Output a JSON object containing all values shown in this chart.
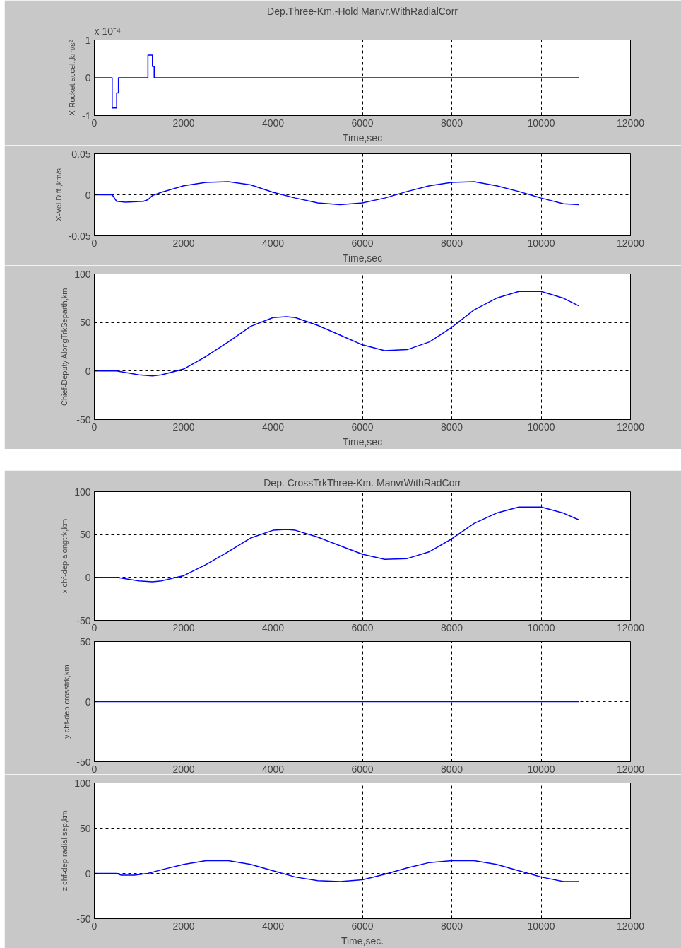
{
  "chart_data": [
    {
      "type": "line",
      "title": "Dep.Three-Km.-Hold Manvr.WithRadialCorr",
      "xlabel": "Time,sec",
      "ylabel": "X-Rocket accel.,km/s²",
      "annotations": [
        "x 10⁻⁴"
      ],
      "x": [
        0,
        400,
        400,
        500,
        500,
        540,
        540,
        1200,
        1200,
        1300,
        1300,
        1340,
        1340,
        10850
      ],
      "series": [
        {
          "color": "#0000ff",
          "values": [
            0,
            0,
            -0.8,
            -0.8,
            -0.4,
            -0.4,
            0,
            0,
            0.6,
            0.6,
            0.3,
            0.3,
            0,
            0
          ]
        }
      ],
      "xlim": [
        0,
        12000
      ],
      "ylim": [
        -1,
        1
      ],
      "xticks": [
        0,
        2000,
        4000,
        6000,
        8000,
        10000,
        12000
      ],
      "yticks": [
        -1,
        0,
        1
      ],
      "grid": true
    },
    {
      "type": "line",
      "xlabel": "Time,sec",
      "ylabel": "X-Vel.Diff.,km/s",
      "x": [
        0,
        400,
        500,
        700,
        1100,
        1200,
        1300,
        1500,
        2000,
        2500,
        3000,
        3500,
        4000,
        4500,
        5000,
        5500,
        6000,
        6500,
        7000,
        7500,
        8000,
        8500,
        9000,
        9500,
        10000,
        10500,
        10850
      ],
      "series": [
        {
          "color": "#0000ff",
          "values": [
            0,
            0,
            -0.008,
            -0.009,
            -0.008,
            -0.006,
            -0.001,
            0.003,
            0.011,
            0.015,
            0.016,
            0.012,
            0.003,
            -0.004,
            -0.01,
            -0.012,
            -0.01,
            -0.004,
            0.004,
            0.011,
            0.015,
            0.016,
            0.011,
            0.004,
            -0.004,
            -0.011,
            -0.012
          ]
        }
      ],
      "xlim": [
        0,
        12000
      ],
      "ylim": [
        -0.05,
        0.05
      ],
      "xticks": [
        0,
        2000,
        4000,
        6000,
        8000,
        10000,
        12000
      ],
      "yticks": [
        -0.05,
        0,
        0.05
      ],
      "grid": true
    },
    {
      "type": "line",
      "xlabel": "Time,sec",
      "ylabel": "Chief-Deputy AlongTrkSeparth,km",
      "x": [
        0,
        500,
        1000,
        1300,
        1500,
        2000,
        2500,
        3000,
        3500,
        4000,
        4300,
        4500,
        5000,
        5500,
        6000,
        6500,
        7000,
        7500,
        8000,
        8500,
        9000,
        9500,
        10000,
        10500,
        10850
      ],
      "series": [
        {
          "color": "#0000ff",
          "values": [
            0,
            0,
            -4,
            -5,
            -4,
            2,
            15,
            30,
            46,
            55,
            56,
            55,
            47,
            37,
            27,
            21,
            22,
            30,
            45,
            63,
            75,
            82,
            82,
            75,
            67
          ]
        }
      ],
      "xlim": [
        0,
        12000
      ],
      "ylim": [
        -50,
        100
      ],
      "xticks": [
        0,
        2000,
        4000,
        6000,
        8000,
        10000,
        12000
      ],
      "yticks": [
        -50,
        0,
        50,
        100
      ],
      "grid": true
    },
    {
      "type": "line",
      "title": "Dep. CrossTrkThree-Km. ManvrWithRadCorr",
      "ylabel": "x chf-dep alongtrk,km",
      "x": [
        0,
        500,
        1000,
        1300,
        1500,
        2000,
        2500,
        3000,
        3500,
        4000,
        4300,
        4500,
        5000,
        5500,
        6000,
        6500,
        7000,
        7500,
        8000,
        8500,
        9000,
        9500,
        10000,
        10500,
        10850
      ],
      "series": [
        {
          "color": "#0000ff",
          "values": [
            0,
            0,
            -4,
            -5,
            -4,
            2,
            15,
            30,
            46,
            55,
            56,
            55,
            47,
            37,
            27,
            21,
            22,
            30,
            45,
            63,
            75,
            82,
            82,
            75,
            67
          ]
        }
      ],
      "xlim": [
        0,
        12000
      ],
      "ylim": [
        -50,
        100
      ],
      "xticks": [
        0,
        2000,
        4000,
        6000,
        8000,
        10000,
        12000
      ],
      "yticks": [
        -50,
        0,
        50,
        100
      ],
      "grid": true
    },
    {
      "type": "line",
      "ylabel": "y chf-dep crosstrk,km",
      "x": [
        0,
        10850
      ],
      "series": [
        {
          "color": "#0000ff",
          "values": [
            0,
            0
          ]
        }
      ],
      "xlim": [
        0,
        12000
      ],
      "ylim": [
        -50,
        50
      ],
      "xticks": [
        0,
        2000,
        4000,
        6000,
        8000,
        10000,
        12000
      ],
      "yticks": [
        -50,
        0,
        50
      ],
      "grid": true
    },
    {
      "type": "line",
      "xlabel": "Time,sec.",
      "ylabel": "z chf-dep radial sep,km",
      "x": [
        0,
        500,
        600,
        900,
        1200,
        1500,
        2000,
        2500,
        3000,
        3500,
        4000,
        4500,
        5000,
        5500,
        6000,
        6500,
        7000,
        7500,
        8000,
        8500,
        9000,
        9500,
        10000,
        10500,
        10850
      ],
      "series": [
        {
          "color": "#0000ff",
          "values": [
            0,
            0,
            -2,
            -2,
            0,
            4,
            10,
            14,
            14,
            10,
            3,
            -4,
            -8,
            -9,
            -7,
            -1,
            6,
            12,
            14,
            14,
            10,
            3,
            -4,
            -9,
            -9
          ]
        }
      ],
      "xlim": [
        0,
        12000
      ],
      "ylim": [
        -50,
        100
      ],
      "xticks": [
        0,
        2000,
        4000,
        6000,
        8000,
        10000,
        12000
      ],
      "yticks": [
        -50,
        0,
        50,
        100
      ],
      "grid": true
    }
  ]
}
